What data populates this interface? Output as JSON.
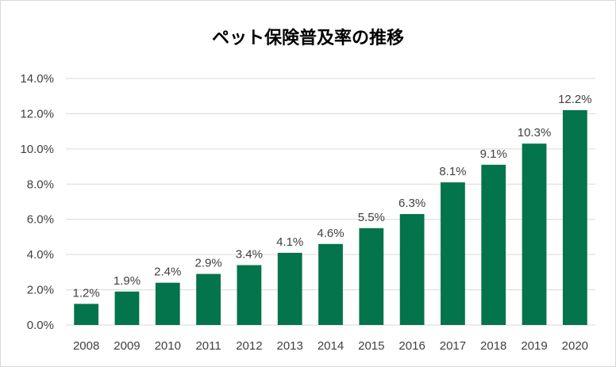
{
  "chart_data": {
    "type": "bar",
    "title": "ペット保険普及率の推移",
    "xlabel": "",
    "ylabel": "",
    "categories": [
      "2008",
      "2009",
      "2010",
      "2011",
      "2012",
      "2013",
      "2014",
      "2015",
      "2016",
      "2017",
      "2018",
      "2019",
      "2020"
    ],
    "values": [
      1.2,
      1.9,
      2.4,
      2.9,
      3.4,
      4.1,
      4.6,
      5.5,
      6.3,
      8.1,
      9.1,
      10.3,
      12.2
    ],
    "data_labels": [
      "1.2%",
      "1.9%",
      "2.4%",
      "2.9%",
      "3.4%",
      "4.1%",
      "4.6%",
      "5.5%",
      "6.3%",
      "8.1%",
      "9.1%",
      "10.3%",
      "12.2%"
    ],
    "ylim": [
      0,
      14
    ],
    "yticks": [
      0,
      2,
      4,
      6,
      8,
      10,
      12,
      14
    ],
    "ytick_labels": [
      "0.0%",
      "2.0%",
      "4.0%",
      "6.0%",
      "8.0%",
      "10.0%",
      "12.0%",
      "14.0%"
    ],
    "grid": true,
    "legend": "none",
    "bar_color": "#03744B",
    "grid_color": "#d9d9d9"
  }
}
